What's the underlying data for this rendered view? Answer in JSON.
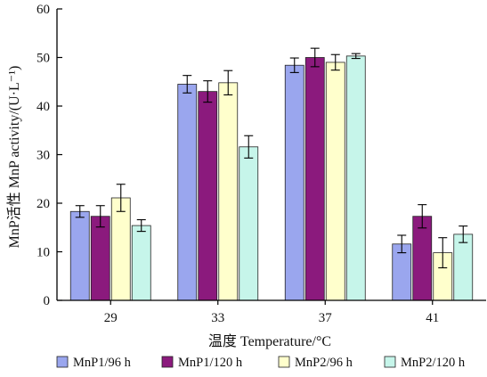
{
  "chart_data": {
    "type": "bar",
    "categories": [
      "29",
      "33",
      "37",
      "41"
    ],
    "series": [
      {
        "name": "MnP1/96 h",
        "color": "#9aa6ee",
        "values": [
          18.3,
          44.5,
          48.4,
          11.6
        ],
        "errors": [
          1.2,
          1.8,
          1.5,
          1.8
        ]
      },
      {
        "name": "MnP1/120 h",
        "color": "#8b1a7d",
        "values": [
          17.3,
          43.0,
          50.0,
          17.3
        ],
        "errors": [
          2.2,
          2.2,
          1.9,
          2.4
        ]
      },
      {
        "name": "MnP2/96 h",
        "color": "#ffffcc",
        "values": [
          21.1,
          44.8,
          49.0,
          9.8
        ],
        "errors": [
          2.8,
          2.5,
          1.6,
          3.1
        ]
      },
      {
        "name": "MnP2/120 h",
        "color": "#c6f5ea",
        "values": [
          15.4,
          31.6,
          50.3,
          13.6
        ],
        "errors": [
          1.2,
          2.3,
          0.5,
          1.7
        ]
      }
    ],
    "yticks": [
      0,
      10,
      20,
      30,
      40,
      50,
      60
    ],
    "ylim": [
      0,
      60
    ],
    "ylabel": "MnP活性 MnP activity/(U·L⁻¹)",
    "xlabel": "温度 Temperature/°C",
    "legend_position": "bottom",
    "grid": false
  }
}
